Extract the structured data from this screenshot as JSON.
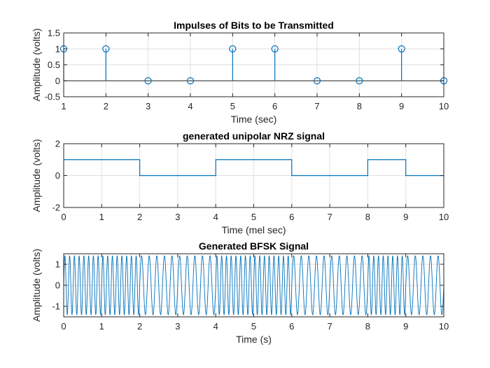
{
  "colors": {
    "series": "#0072BD",
    "axis": "#262626",
    "grid": "#DFDFDF",
    "baseline": "#262626"
  },
  "chart_data": [
    {
      "type": "stem",
      "title": "Impulses of Bits to be Transmitted",
      "xlabel": "Time (sec)",
      "ylabel": "Amplitude (volts)",
      "xlim": [
        1,
        10
      ],
      "ylim": [
        -0.5,
        1.5
      ],
      "xticks": [
        1,
        2,
        3,
        4,
        5,
        6,
        7,
        8,
        9,
        10
      ],
      "yticks": [
        -0.5,
        0,
        0.5,
        1,
        1.5
      ],
      "grid": true,
      "x": [
        1,
        2,
        3,
        4,
        5,
        6,
        7,
        8,
        9,
        10
      ],
      "values": [
        1,
        1,
        0,
        0,
        1,
        1,
        0,
        0,
        1,
        0
      ]
    },
    {
      "type": "line",
      "title": "generated unipolar NRZ signal",
      "xlabel": "Time (mel sec)",
      "ylabel": "Amplitude (volts)",
      "xlim": [
        0,
        10
      ],
      "ylim": [
        -2,
        2
      ],
      "xticks": [
        0,
        1,
        2,
        3,
        4,
        5,
        6,
        7,
        8,
        9,
        10
      ],
      "yticks": [
        -2,
        0,
        2
      ],
      "grid": true,
      "x": [
        0,
        2,
        2,
        4,
        4,
        6,
        6,
        8,
        8,
        9,
        9,
        10
      ],
      "y": [
        1,
        1,
        0,
        0,
        1,
        1,
        0,
        0,
        1,
        1,
        0,
        0
      ]
    },
    {
      "type": "line",
      "title": "Generated BFSK Signal",
      "xlabel": "Time (s)",
      "ylabel": "Amplitude (volts)",
      "xlim": [
        0,
        10
      ],
      "ylim": [
        -1.5,
        1.5
      ],
      "xticks": [
        0,
        1,
        2,
        3,
        4,
        5,
        6,
        7,
        8,
        9,
        10
      ],
      "yticks": [
        -1,
        0,
        1
      ],
      "grid": true,
      "amplitude": 1.4,
      "bits": [
        1,
        1,
        0,
        0,
        1,
        1,
        0,
        0,
        1,
        0
      ],
      "freq_bit1": 8,
      "freq_bit0": 5
    }
  ]
}
